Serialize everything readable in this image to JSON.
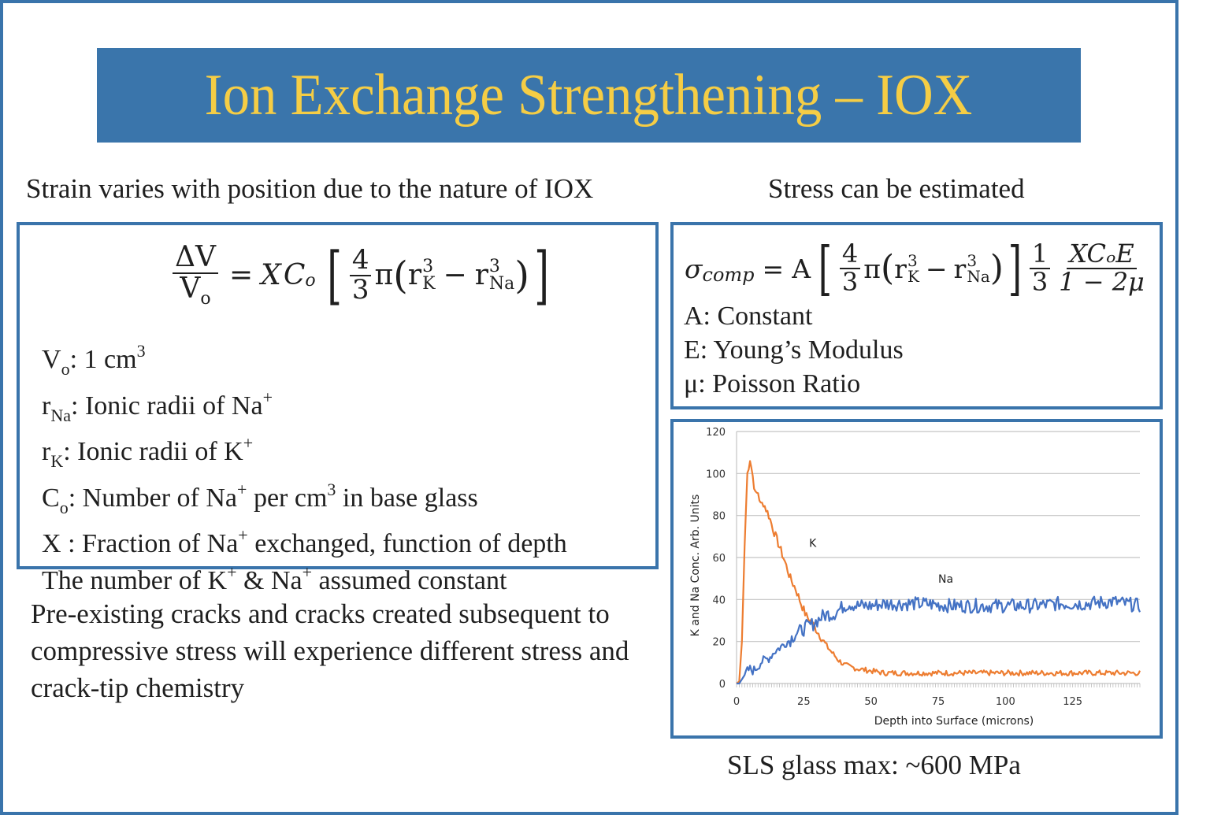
{
  "slide": {
    "title": "Ion Exchange Strengthening – IOX",
    "colors": {
      "frame": "#3a74ab",
      "title_bg": "#3a75ab",
      "title_text": "#f5cd45",
      "k_line": "#ed7d31",
      "na_line": "#4472c4",
      "grid": "#c0c0c0"
    }
  },
  "left": {
    "heading": "Strain varies with position due to the nature of IOX",
    "equation": {
      "lhs_num": "ΔV",
      "lhs_den": "V",
      "lhs_den_sub": "o",
      "equals": "=",
      "x": "X",
      "c": "C",
      "c_sub": "o",
      "frac_num": "4",
      "frac_den": "3",
      "pi": "π",
      "r": "r",
      "exp": "3",
      "sub_k": "K",
      "minus": "−",
      "sub_na": "Na"
    },
    "definitions": [
      {
        "sym": "V",
        "sub": "o",
        "sep": ": ",
        "text": "1 cm",
        "sup": "3",
        "tail": ""
      },
      {
        "sym": "r",
        "sub": "Na",
        "sep": ": ",
        "text": "Ionic radii of Na",
        "sup": "+",
        "tail": ""
      },
      {
        "sym": "r",
        "sub": "K",
        "sep": ": ",
        "text": "Ionic radii of K",
        "sup": "+",
        "tail": ""
      },
      {
        "sym": "C",
        "sub": "o",
        "sep": ": ",
        "text": "Number of Na",
        "sup": "+",
        "tail": " per cm",
        "sup2": "3",
        "tail2": " in base glass"
      },
      {
        "sym": "X",
        "sub": "",
        "sep": " : ",
        "text": "Fraction of Na",
        "sup": "+",
        "tail": " exchanged, function of depth"
      },
      {
        "sym": "The number of K",
        "sub": "",
        "sep": "",
        "text": "",
        "sup": "+",
        "tail": " & Na",
        "sup2": "+",
        "tail2": " assumed constant"
      }
    ],
    "paragraph": "Pre-existing cracks and cracks created subsequent to compressive stress will experience different stress and crack-tip chemistry"
  },
  "right": {
    "heading": "Stress can be estimated",
    "equation": {
      "sigma": "σ",
      "sigma_sub": "comp",
      "equals": "=",
      "a": "A",
      "frac_num": "4",
      "frac_den": "3",
      "pi": "π",
      "r": "r",
      "exp": "3",
      "sub_k": "K",
      "minus": "−",
      "sub_na": "Na",
      "third_num": "1",
      "third_den": "3",
      "last_num": "XCₒE",
      "last_den": "1 − 2μ"
    },
    "definitions": [
      "A: Constant",
      "E: Young’s Modulus",
      "μ: Poisson Ratio"
    ],
    "footer": "SLS glass max: ~600 MPa"
  },
  "chart_data": {
    "type": "line",
    "title": "",
    "xlabel": "Depth into Surface (microns)",
    "ylabel": "K and Na Conc.  Arb. Units",
    "xlim": [
      0,
      150
    ],
    "ylim": [
      0,
      120
    ],
    "x_ticks": [
      0,
      25,
      50,
      75,
      100,
      125
    ],
    "y_ticks": [
      0,
      20,
      40,
      60,
      80,
      100,
      120
    ],
    "grid": true,
    "legend": "inline labels",
    "annotations": [
      {
        "text": "K",
        "x": 27,
        "y": 65
      },
      {
        "text": "Na",
        "x": 75,
        "y": 48
      }
    ],
    "x": [
      0,
      1,
      2,
      3,
      4,
      5,
      6,
      7,
      8,
      9,
      10,
      12,
      14,
      16,
      18,
      20,
      22,
      24,
      26,
      28,
      30,
      32,
      34,
      36,
      38,
      40,
      42,
      45,
      50,
      55,
      60,
      70,
      80,
      90,
      100,
      110,
      120,
      130,
      140,
      150
    ],
    "series": [
      {
        "name": "K",
        "color": "#ed7d31",
        "values": [
          0,
          1,
          20,
          65,
          100,
          107,
          99,
          90,
          91,
          85,
          86,
          80,
          72,
          65,
          58,
          50,
          45,
          38,
          32,
          29,
          25,
          21,
          17,
          14,
          11,
          9,
          8,
          7,
          6,
          5,
          5,
          5,
          5,
          5,
          5,
          5,
          5,
          5,
          5,
          5
        ]
      },
      {
        "name": "Na",
        "color": "#4472c4",
        "values": [
          0,
          0,
          2,
          4,
          6,
          7,
          6,
          7,
          8,
          10,
          11,
          12,
          15,
          17,
          19,
          21,
          24,
          25,
          27,
          28,
          30,
          32,
          33,
          33,
          35,
          37,
          38,
          37,
          37,
          38,
          38,
          38,
          37,
          37,
          37,
          37,
          38,
          38,
          39,
          37
        ]
      }
    ]
  }
}
